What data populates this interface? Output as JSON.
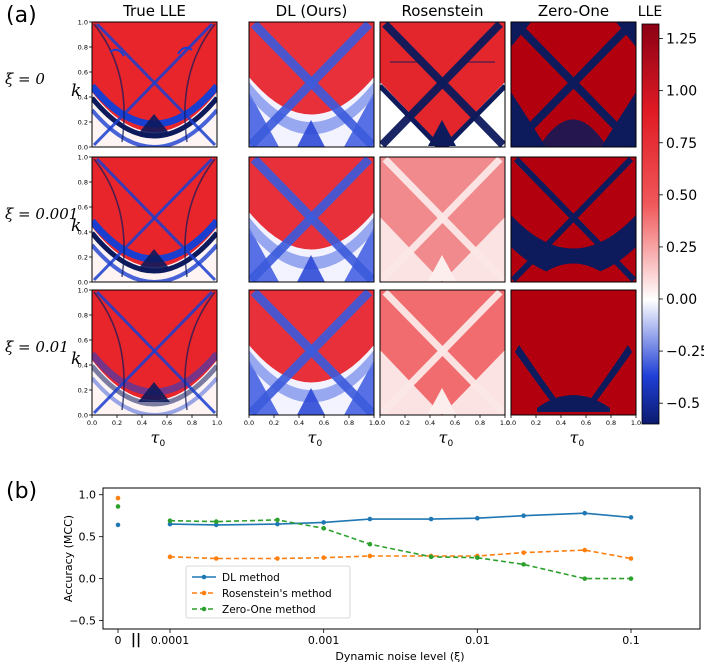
{
  "panel_a": {
    "label": "(a)",
    "column_titles": [
      "True LLE",
      "DL (Ours)",
      "Rosenstein",
      "Zero-One"
    ],
    "row_labels": [
      "ξ = 0",
      "ξ = 0.001",
      "ξ = 0.01"
    ],
    "y_axis_label": "k",
    "x_axis_label": "τ",
    "x_axis_subscript": "0",
    "y_ticks": [
      "0.0",
      "0.2",
      "0.4",
      "0.6",
      "0.8",
      "1.0"
    ],
    "x_ticks": [
      "0.0",
      "0.2",
      "0.4",
      "0.6",
      "0.8",
      "1.0"
    ],
    "colorbar": {
      "title": "LLE",
      "ticks": [
        "1.25",
        "1.00",
        "0.75",
        "0.50",
        "0.25",
        "0.00",
        "−0.25",
        "−0.5"
      ],
      "tick_values": [
        1.25,
        1.0,
        0.75,
        0.5,
        0.25,
        0.0,
        -0.25,
        -0.5
      ],
      "range": [
        -0.6,
        1.32
      ],
      "colors": {
        "low": "#0b1a6e",
        "mid": "#ffffff",
        "high": "#a00016"
      }
    },
    "colors": {
      "red": "#e8252b",
      "blue": "#1a3fd0",
      "navy": "#0d1a5c",
      "dark_red": "#b3000f"
    }
  },
  "chart_data": {
    "label": "(b)",
    "type": "line",
    "xlabel": "Dynamic noise level (ξ)",
    "ylabel": "Accuracy (MCC)",
    "x_scale": "log",
    "x": [
      0.0001,
      0.0002,
      0.0005,
      0.001,
      0.002,
      0.005,
      0.01,
      0.02,
      0.05,
      0.1
    ],
    "x_tick_labels": [
      "0",
      "0.0001",
      "0.001",
      "0.01",
      "0.1"
    ],
    "y_ticks": [
      "1.0",
      "0.5",
      "0.0",
      "−0.5"
    ],
    "y_tick_values": [
      1.0,
      0.5,
      0.0,
      -0.5
    ],
    "ylim": [
      -0.6,
      1.08
    ],
    "break_marker": "||",
    "legend_position": "lower-center",
    "series": [
      {
        "name": "DL method",
        "color": "#1f77b4",
        "style": "solid",
        "x0_value": 0.64,
        "values": [
          0.65,
          0.64,
          0.65,
          0.67,
          0.71,
          0.71,
          0.72,
          0.75,
          0.78,
          0.73
        ]
      },
      {
        "name": "Rosenstein's method",
        "color": "#ff7f0e",
        "style": "dashed",
        "x0_value": 0.96,
        "values": [
          0.26,
          0.24,
          0.24,
          0.25,
          0.27,
          0.27,
          0.27,
          0.31,
          0.34,
          0.24
        ]
      },
      {
        "name": "Zero-One method",
        "color": "#2ca02c",
        "style": "dashed",
        "x0_value": 0.86,
        "values": [
          0.69,
          0.68,
          0.7,
          0.6,
          0.41,
          0.26,
          0.25,
          0.17,
          0.0,
          0.0
        ]
      }
    ]
  }
}
